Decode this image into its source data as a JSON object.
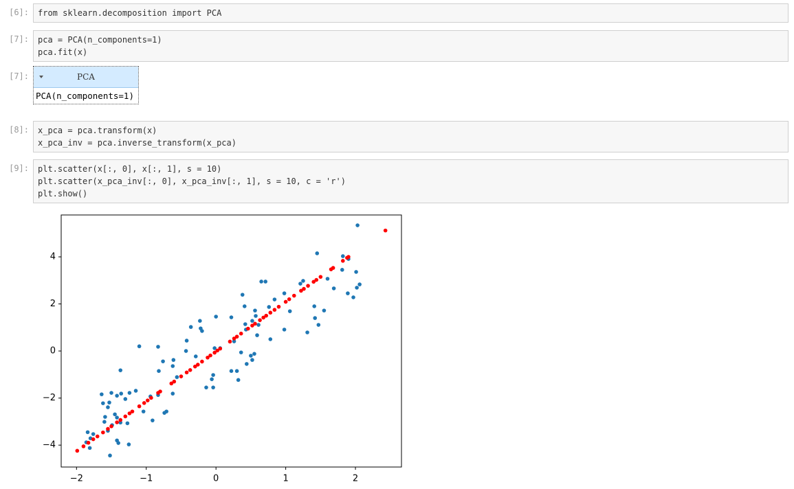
{
  "notebook": {
    "cells": [
      {
        "prompt": "[6]:",
        "lines": [
          "from sklearn.decomposition import PCA"
        ]
      },
      {
        "prompt": "[7]:",
        "lines": [
          "pca = PCA(n_components=1)",
          "pca.fit(x)"
        ]
      },
      {
        "prompt": "[8]:",
        "lines": [
          "x_pca = pca.transform(x)",
          "x_pca_inv = pca.inverse_transform(x_pca)"
        ]
      },
      {
        "prompt": "[9]:",
        "lines": [
          "plt.scatter(x[:, 0], x[:, 1], s = 10)",
          "plt.scatter(x_pca_inv[:, 0], x_pca_inv[:, 1], s = 10, c = 'r')",
          "plt.show()"
        ]
      }
    ],
    "output": {
      "prompt": "[7]:",
      "title": "PCA",
      "body": "PCA(n_components=1)"
    }
  },
  "chart_data": {
    "type": "scatter",
    "xlim": [
      -2.22,
      2.66
    ],
    "ylim": [
      -4.93,
      5.78
    ],
    "xticks": [
      {
        "value": -2,
        "label": "−2"
      },
      {
        "value": -1,
        "label": "−1"
      },
      0,
      1,
      2
    ],
    "yticks": [
      {
        "value": -4,
        "label": "−4"
      },
      {
        "value": -2,
        "label": "−2"
      },
      0,
      2,
      4
    ],
    "grid": false,
    "series": [
      {
        "color": "#1f77b4",
        "x": [
          2.03,
          1.45,
          1.82,
          1.9,
          1.81,
          2.01,
          2.06,
          2.02,
          1.6,
          1.25,
          1.21,
          1.69,
          1.89,
          1.97,
          1.41,
          1.55,
          1.06,
          1.42,
          1.47,
          1.31,
          0.98,
          0.84,
          0.76,
          0.65,
          0.71,
          0.38,
          0.41,
          0.56,
          0.57,
          0.52,
          0.61,
          0.59,
          0.78,
          0.98,
          0.42,
          0.43,
          0.22,
          0.26,
          0.36,
          0.55,
          0.5,
          0.52,
          0.44,
          0.3,
          0.22,
          0.32,
          -0.04,
          -0.14,
          -0.04,
          -0.06,
          0.0,
          -0.23,
          -0.22,
          -0.2,
          -0.36,
          -0.42,
          -0.43,
          -0.29,
          -0.02,
          0.06,
          -0.61,
          -0.76,
          -0.62,
          -0.56,
          -0.82,
          -0.83,
          -0.71,
          -0.74,
          -0.62,
          -0.94,
          -1.1,
          -0.83,
          -1.37,
          -1.04,
          -1.15,
          -1.24,
          -1.36,
          -1.42,
          -1.3,
          -1.64,
          -1.5,
          -1.62,
          -1.53,
          -1.55,
          -1.59,
          -1.45,
          -1.42,
          -1.49,
          -1.37,
          -1.27,
          -1.6,
          -1.55,
          -1.76,
          -1.84,
          -1.8,
          -1.86,
          -1.42,
          -1.4,
          -1.25,
          -1.81,
          -1.52,
          -0.91
        ],
        "y": [
          5.34,
          4.15,
          4.03,
          3.91,
          3.45,
          3.36,
          2.83,
          2.69,
          3.07,
          2.98,
          2.86,
          2.66,
          2.45,
          2.28,
          1.9,
          1.72,
          1.69,
          1.4,
          1.11,
          0.79,
          2.45,
          2.19,
          1.87,
          2.95,
          2.95,
          2.39,
          1.9,
          1.72,
          1.49,
          1.28,
          1.11,
          0.67,
          0.5,
          0.91,
          1.14,
          0.91,
          1.43,
          0.41,
          -0.06,
          -0.12,
          -0.2,
          -0.38,
          -0.55,
          -0.85,
          -0.85,
          -1.23,
          -1.02,
          -1.55,
          -1.55,
          -1.2,
          1.46,
          1.28,
          0.96,
          0.85,
          1.02,
          0.44,
          0.0,
          -0.23,
          0.12,
          0.12,
          -0.38,
          -0.44,
          -0.64,
          -1.11,
          -0.85,
          -1.87,
          -2.57,
          -2.63,
          -1.81,
          -1.93,
          0.2,
          0.18,
          -0.82,
          -2.57,
          -1.69,
          -1.78,
          -1.81,
          -1.9,
          -2.04,
          -1.84,
          -1.78,
          -2.22,
          -2.19,
          -2.39,
          -2.8,
          -2.69,
          -2.83,
          -3.15,
          -3.04,
          -3.07,
          -3.01,
          -3.39,
          -3.53,
          -3.45,
          -3.71,
          -3.88,
          -3.8,
          -3.91,
          -3.97,
          -4.12,
          -4.44,
          -2.95
        ]
      },
      {
        "color": "#ff0000",
        "x": [
          -1.99,
          -1.9,
          -1.83,
          -1.76,
          -1.7,
          -1.62,
          -1.55,
          -1.5,
          -1.42,
          -1.37,
          -1.3,
          -1.24,
          -1.2,
          -1.1,
          -1.03,
          -0.98,
          -0.93,
          -0.83,
          -0.8,
          -0.64,
          -0.6,
          -0.5,
          -0.42,
          -0.37,
          -0.3,
          -0.26,
          -0.2,
          -0.12,
          -0.08,
          -0.02,
          0.02,
          0.06,
          0.2,
          0.26,
          0.3,
          0.36,
          0.46,
          0.52,
          0.56,
          0.63,
          0.68,
          0.72,
          0.78,
          0.84,
          0.9,
          1.0,
          1.05,
          1.12,
          1.22,
          1.26,
          1.32,
          1.4,
          1.44,
          1.5,
          1.65,
          1.68,
          1.82,
          1.88,
          1.9,
          2.43
        ],
        "y": [
          -4.24,
          -4.05,
          -3.9,
          -3.75,
          -3.63,
          -3.46,
          -3.31,
          -3.2,
          -3.03,
          -2.93,
          -2.78,
          -2.65,
          -2.57,
          -2.35,
          -2.21,
          -2.1,
          -1.99,
          -1.78,
          -1.72,
          -1.38,
          -1.3,
          -1.08,
          -0.91,
          -0.81,
          -0.66,
          -0.58,
          -0.45,
          -0.28,
          -0.19,
          -0.07,
          0.02,
          0.1,
          0.4,
          0.53,
          0.61,
          0.74,
          0.95,
          1.08,
          1.16,
          1.31,
          1.42,
          1.5,
          1.63,
          1.75,
          1.88,
          2.09,
          2.2,
          2.35,
          2.56,
          2.64,
          2.77,
          2.94,
          3.02,
          3.15,
          3.47,
          3.53,
          3.83,
          3.96,
          4.0,
          5.12
        ]
      }
    ]
  }
}
